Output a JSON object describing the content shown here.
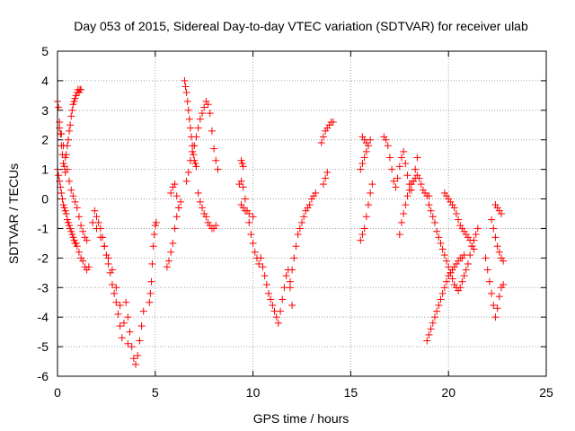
{
  "chart_data": {
    "type": "scatter",
    "title": "Day 053 of 2015, Sidereal Day-to-day VTEC variation (SDTVAR) for receiver ulab",
    "xlabel": "GPS time / hours",
    "ylabel": "SDTVAR / TECUs",
    "xlim": [
      0,
      25
    ],
    "ylim": [
      -6,
      5
    ],
    "xticks": [
      0,
      5,
      10,
      15,
      20,
      25
    ],
    "yticks": [
      -6,
      -5,
      -4,
      -3,
      -2,
      -1,
      0,
      1,
      2,
      3,
      4,
      5
    ],
    "grid": true,
    "marker": "+",
    "color": "#ff0000",
    "series": [
      {
        "name": "SDTVAR",
        "x": [
          0.0,
          0.05,
          0.1,
          0.15,
          0.2,
          0.25,
          0.3,
          0.35,
          0.4,
          0.45,
          0.5,
          0.55,
          0.6,
          0.65,
          0.7,
          0.75,
          0.8,
          0.85,
          0.9,
          0.95,
          1.0,
          1.05,
          1.1,
          1.15,
          1.2,
          0.0,
          0.05,
          0.1,
          0.15,
          0.2,
          0.25,
          0.3,
          0.35,
          0.4,
          0.45,
          0.5,
          0.55,
          0.6,
          0.65,
          0.7,
          0.75,
          0.8,
          0.85,
          0.9,
          0.95,
          1.0,
          1.1,
          1.2,
          1.3,
          1.4,
          1.5,
          1.6,
          0.1,
          0.2,
          0.3,
          0.4,
          0.5,
          0.6,
          0.7,
          0.8,
          0.9,
          1.0,
          1.1,
          1.2,
          1.3,
          1.4,
          1.5,
          1.9,
          2.0,
          2.1,
          2.2,
          2.3,
          2.4,
          2.5,
          2.6,
          2.7,
          2.8,
          2.9,
          3.0,
          3.1,
          3.2,
          3.3,
          1.8,
          2.0,
          2.2,
          2.4,
          2.6,
          2.8,
          3.0,
          3.2,
          3.4,
          3.6,
          3.5,
          3.6,
          3.7,
          3.8,
          3.9,
          4.0,
          4.1,
          4.2,
          4.3,
          4.4,
          4.7,
          4.75,
          4.8,
          4.85,
          4.9,
          4.95,
          5.0,
          5.05,
          5.6,
          5.7,
          5.8,
          5.9,
          6.0,
          6.1,
          6.2,
          6.3,
          5.8,
          5.9,
          6.0,
          6.1,
          6.2,
          6.5,
          6.55,
          6.6,
          6.65,
          6.7,
          6.75,
          6.8,
          6.85,
          6.9,
          6.95,
          7.0,
          7.05,
          7.1,
          6.6,
          6.7,
          6.8,
          6.9,
          7.0,
          7.1,
          7.2,
          7.3,
          7.4,
          7.5,
          7.6,
          7.7,
          7.8,
          7.9,
          8.0,
          8.1,
          8.2,
          7.2,
          7.3,
          7.4,
          7.5,
          7.6,
          7.7,
          7.8,
          7.9,
          8.0,
          8.1,
          9.3,
          9.4,
          9.5,
          9.6,
          9.7,
          9.8,
          9.9,
          10.0,
          10.1,
          10.2,
          10.3,
          9.4,
          9.5,
          9.6,
          9.8,
          10.0,
          9.4,
          9.45,
          9.5,
          10.4,
          10.5,
          10.6,
          10.7,
          10.8,
          10.9,
          11.0,
          11.1,
          11.2,
          11.3,
          11.4,
          11.5,
          11.6,
          11.7,
          11.8,
          11.9,
          12.0,
          11.9,
          12.0,
          12.1,
          12.2,
          12.3,
          12.4,
          12.5,
          12.6,
          12.7,
          12.8,
          12.9,
          13.0,
          13.1,
          13.2,
          13.5,
          13.6,
          13.7,
          13.8,
          13.9,
          14.0,
          14.1,
          13.6,
          13.7,
          13.8,
          15.5,
          15.6,
          15.7,
          15.8,
          15.9,
          16.0,
          16.1,
          15.5,
          15.6,
          15.7,
          15.8,
          15.9,
          16.0,
          15.6,
          15.7,
          15.8,
          16.7,
          16.8,
          16.9,
          17.0,
          17.1,
          17.2,
          17.3,
          17.4,
          17.5,
          17.6,
          17.7,
          17.8,
          17.9,
          18.0,
          18.1,
          18.2,
          18.3,
          18.4,
          17.5,
          17.6,
          17.7,
          17.8,
          17.9,
          18.0,
          18.1,
          18.2,
          18.3,
          18.4,
          18.5,
          18.6,
          18.7,
          18.8,
          18.9,
          19.0,
          18.9,
          19.0,
          19.1,
          19.2,
          19.3,
          19.4,
          19.5,
          19.6,
          19.7,
          19.8,
          19.9,
          20.0,
          20.1,
          20.2,
          20.3,
          20.4,
          20.5,
          20.6,
          20.7,
          20.8,
          19.0,
          19.1,
          19.2,
          19.3,
          19.4,
          19.5,
          19.6,
          19.7,
          19.8,
          19.9,
          20.0,
          20.1,
          20.2,
          20.3,
          20.4,
          20.5,
          20.6,
          20.7,
          20.8,
          20.9,
          21.0,
          21.1,
          21.2,
          21.3,
          21.4,
          21.5,
          19.8,
          19.9,
          20.0,
          20.1,
          20.2,
          20.3,
          20.4,
          20.5,
          20.6,
          20.7,
          20.8,
          20.9,
          21.0,
          21.1,
          21.2,
          21.3,
          21.9,
          22.0,
          22.1,
          22.2,
          22.3,
          22.4,
          22.5,
          22.6,
          22.7,
          22.8,
          22.2,
          22.3,
          22.4,
          22.5,
          22.6,
          22.7,
          22.8,
          22.4,
          22.5,
          22.6,
          22.7
        ],
        "y": [
          3.3,
          3.1,
          2.6,
          2.2,
          1.8,
          1.5,
          1.2,
          1.1,
          0.9,
          1.5,
          1.8,
          2.0,
          2.3,
          2.5,
          2.8,
          3.0,
          3.2,
          3.3,
          3.4,
          3.5,
          3.6,
          3.7,
          3.6,
          3.7,
          3.7,
          1.0,
          0.8,
          0.6,
          0.4,
          0.2,
          0.0,
          -0.2,
          -0.3,
          -0.4,
          -0.5,
          -0.7,
          -0.8,
          -0.9,
          -1.0,
          -1.1,
          -1.2,
          -1.3,
          -1.4,
          -1.5,
          -1.5,
          -1.6,
          -1.8,
          -2.0,
          -2.1,
          -2.3,
          -2.4,
          -2.3,
          2.4,
          2.2,
          1.8,
          1.4,
          1.0,
          0.6,
          0.3,
          0.1,
          -0.1,
          -0.3,
          -0.6,
          -0.9,
          -1.1,
          -1.3,
          -1.4,
          -0.4,
          -0.6,
          -0.8,
          -1.0,
          -1.3,
          -1.6,
          -1.9,
          -2.2,
          -2.5,
          -2.9,
          -3.2,
          -3.5,
          -3.9,
          -4.3,
          -4.7,
          -0.8,
          -1.0,
          -1.3,
          -1.6,
          -2.0,
          -2.4,
          -3.0,
          -3.6,
          -4.2,
          -4.9,
          -3.5,
          -4.0,
          -4.5,
          -5.0,
          -5.4,
          -5.6,
          -5.3,
          -4.8,
          -4.3,
          -3.8,
          -3.5,
          -3.2,
          -2.8,
          -2.2,
          -1.6,
          -1.2,
          -0.9,
          -0.8,
          -2.3,
          -2.1,
          -1.8,
          -1.5,
          -1.0,
          -0.6,
          -0.3,
          -0.1,
          0.2,
          0.4,
          0.5,
          0.1,
          -0.3,
          4.0,
          3.8,
          3.6,
          3.3,
          3.0,
          2.7,
          2.4,
          2.1,
          1.8,
          1.5,
          1.3,
          1.2,
          1.1,
          0.6,
          0.9,
          1.3,
          1.6,
          1.8,
          2.1,
          2.4,
          2.7,
          2.9,
          3.1,
          3.3,
          3.2,
          2.9,
          2.3,
          1.7,
          1.3,
          1.0,
          0.2,
          -0.1,
          -0.3,
          -0.5,
          -0.6,
          -0.8,
          -0.9,
          -1.0,
          -1.0,
          -0.9,
          0.5,
          0.6,
          0.4,
          0.0,
          -0.4,
          -0.8,
          -1.2,
          -1.5,
          -1.8,
          -2.0,
          -2.2,
          -0.2,
          -0.3,
          -0.4,
          -0.5,
          -0.6,
          1.3,
          1.2,
          1.1,
          -2.0,
          -2.3,
          -2.6,
          -2.9,
          -3.2,
          -3.4,
          -3.6,
          -3.8,
          -4.0,
          -4.2,
          -3.8,
          -3.4,
          -3.0,
          -2.6,
          -2.4,
          -3.0,
          -3.6,
          -2.8,
          -2.4,
          -2.0,
          -1.6,
          -1.2,
          -1.0,
          -0.8,
          -0.6,
          -0.4,
          -0.3,
          -0.2,
          0.0,
          0.1,
          0.2,
          1.9,
          2.1,
          2.3,
          2.4,
          2.5,
          2.6,
          2.6,
          0.5,
          0.7,
          0.9,
          -1.4,
          -1.2,
          -1.0,
          -0.6,
          -0.2,
          0.2,
          0.5,
          1.0,
          1.2,
          1.4,
          1.6,
          1.8,
          2.0,
          2.1,
          2.0,
          1.9,
          2.1,
          2.0,
          1.8,
          1.4,
          1.0,
          0.6,
          0.4,
          0.7,
          1.1,
          1.4,
          1.6,
          1.2,
          0.8,
          0.5,
          0.3,
          0.6,
          1.0,
          1.4,
          -1.2,
          -0.8,
          -0.5,
          -0.2,
          0.1,
          0.3,
          0.5,
          0.6,
          0.7,
          0.8,
          0.7,
          0.5,
          0.3,
          0.2,
          0.1,
          0.1,
          -4.8,
          -4.6,
          -4.4,
          -4.2,
          -4.0,
          -3.8,
          -3.6,
          -3.4,
          -3.2,
          -3.0,
          -2.8,
          -2.6,
          -2.5,
          -2.4,
          -2.3,
          -2.2,
          -2.1,
          -2.0,
          -2.0,
          -1.9,
          -0.2,
          -0.4,
          -0.6,
          -0.8,
          -1.1,
          -1.3,
          -1.5,
          -1.7,
          -1.9,
          -2.1,
          -2.3,
          -2.5,
          -2.7,
          -2.9,
          -3.0,
          -3.1,
          -3.0,
          -2.8,
          -2.6,
          -2.4,
          -2.2,
          -1.9,
          -1.6,
          -1.4,
          -1.2,
          -1.0,
          0.2,
          0.1,
          0.0,
          -0.1,
          -0.2,
          -0.3,
          -0.5,
          -0.7,
          -0.9,
          -1.0,
          -1.1,
          -1.2,
          -1.3,
          -1.4,
          -1.6,
          -1.7,
          -2.0,
          -2.4,
          -2.8,
          -3.2,
          -3.6,
          -4.0,
          -3.7,
          -3.3,
          -3.0,
          -2.9,
          -0.7,
          -1.0,
          -1.3,
          -1.6,
          -1.8,
          -2.0,
          -2.1,
          -0.2,
          -0.3,
          -0.4,
          -0.5
        ]
      }
    ]
  }
}
